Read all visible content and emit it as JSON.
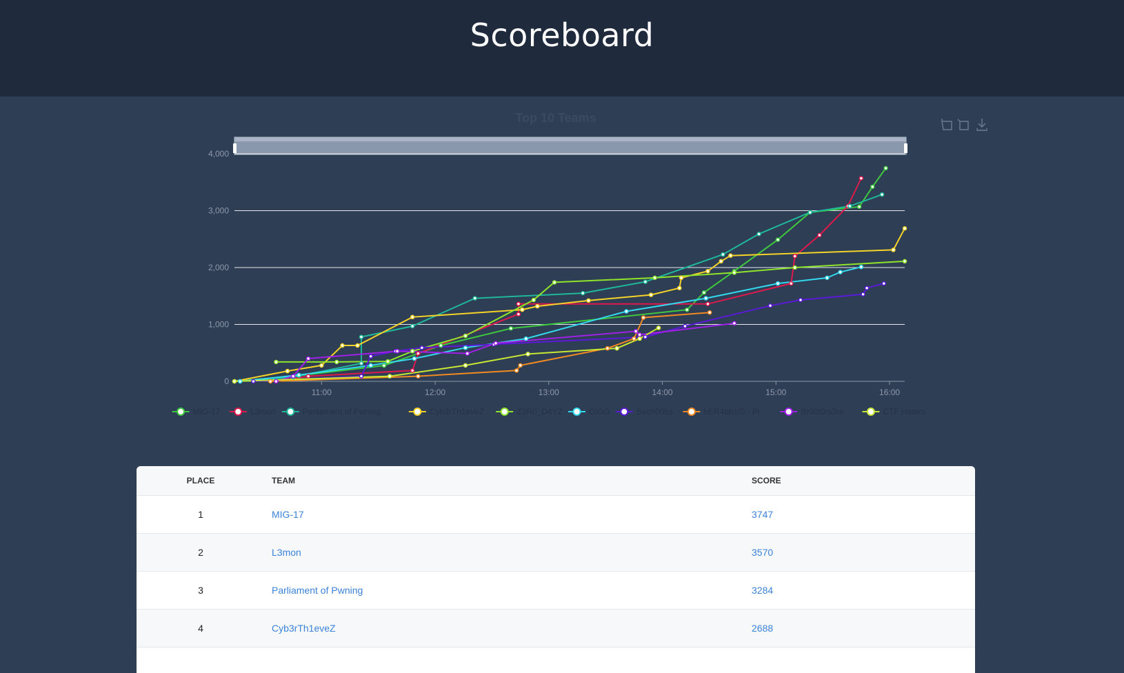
{
  "header": {
    "title": "Scoreboard"
  },
  "chart_data": {
    "type": "line",
    "title": "Top 10 Teams",
    "xlim": [
      614,
      968
    ],
    "xticks": [
      {
        "value": 660,
        "label": "11:00"
      },
      {
        "value": 720,
        "label": "12:00"
      },
      {
        "value": 780,
        "label": "13:00"
      },
      {
        "value": 840,
        "label": "14:00"
      },
      {
        "value": 900,
        "label": "15:00"
      },
      {
        "value": 960,
        "label": "16:00"
      }
    ],
    "ylim": [
      0,
      4000
    ],
    "yticks": [
      0,
      {
        "value": 1000,
        "label": "1,000"
      },
      {
        "value": 2000,
        "label": "2,000"
      },
      {
        "value": 3000,
        "label": "3,000"
      },
      {
        "value": 4000,
        "label": "4,000"
      }
    ],
    "grid": true,
    "legend": "bottom",
    "series": [
      {
        "name": "MIG-17",
        "color": "#3fc93f",
        "x": [
          614,
          648,
          693,
          723,
          760,
          853,
          862,
          878,
          901,
          918,
          944,
          951,
          958
        ],
        "values": [
          0,
          100,
          277,
          630,
          930,
          1258,
          1560,
          1937,
          2490,
          2970,
          3070,
          3420,
          3747
        ]
      },
      {
        "name": "L3mon",
        "color": "#e0194d",
        "x": [
          636,
          653,
          708,
          711,
          764,
          764,
          864,
          908,
          910,
          923,
          938,
          945
        ],
        "values": [
          0,
          90,
          190,
          490,
          1180,
          1360,
          1360,
          1720,
          2200,
          2570,
          3080,
          3570
        ]
      },
      {
        "name": "Parliament of Pwning",
        "color": "#1fb89a",
        "x": [
          617,
          645,
          681,
          681,
          708,
          741,
          798,
          831,
          872,
          891,
          918,
          939,
          956
        ],
        "values": [
          0,
          75,
          315,
          780,
          970,
          1460,
          1550,
          1750,
          2230,
          2590,
          2970,
          3080,
          3284
        ]
      },
      {
        "name": "Cyb3rTh1eveZ",
        "color": "#f5d327",
        "x": [
          614,
          642,
          660,
          671,
          679,
          708,
          766,
          774,
          801,
          834,
          849,
          850,
          864,
          871,
          876,
          962,
          968
        ],
        "values": [
          0,
          180,
          280,
          630,
          630,
          1130,
          1260,
          1320,
          1420,
          1520,
          1640,
          1820,
          1937,
          2110,
          2210,
          2310,
          2688
        ]
      },
      {
        "name": "Z3R0_D4YZ",
        "color": "#8ee52a",
        "x": [
          636,
          668,
          695,
          708,
          736,
          772,
          783,
          836,
          878,
          910,
          968
        ],
        "values": [
          340,
          340,
          350,
          530,
          800,
          1430,
          1740,
          1820,
          1910,
          2000,
          2110
        ]
      },
      {
        "name": "GiGG",
        "color": "#33d9ef",
        "x": [
          617,
          648,
          686,
          709,
          736,
          768,
          821,
          863,
          901,
          927,
          934,
          945
        ],
        "values": [
          0,
          110,
          280,
          400,
          590,
          750,
          1230,
          1460,
          1720,
          1820,
          1920,
          2010
        ]
      },
      {
        "name": "Sech00bs",
        "color": "#5b19d8",
        "x": [
          624,
          681,
          686,
          699,
          713,
          751,
          831,
          852,
          897,
          913,
          946,
          948,
          957
        ],
        "values": [
          0,
          90,
          440,
          530,
          590,
          650,
          780,
          970,
          1330,
          1430,
          1530,
          1640,
          1720
        ]
      },
      {
        "name": "bER4bb1t5 - Pi",
        "color": "#f28a22",
        "x": [
          633,
          711,
          763,
          765,
          811,
          825,
          830,
          865
        ],
        "values": [
          0,
          90,
          190,
          280,
          580,
          750,
          1120,
          1210
        ]
      },
      {
        "name": "Br00t0rs3rs",
        "color": "#a020e8",
        "x": [
          636,
          645,
          653,
          700,
          737,
          752,
          826,
          828,
          878
        ],
        "values": [
          0,
          90,
          400,
          530,
          490,
          670,
          880,
          820,
          1020
        ]
      },
      {
        "name": "CTF Haters",
        "color": "#c8e832",
        "x": [
          614,
          696,
          736,
          769,
          816,
          828,
          838
        ],
        "values": [
          0,
          90,
          280,
          480,
          580,
          750,
          940
        ]
      }
    ]
  },
  "table": {
    "columns": [
      "PLACE",
      "TEAM",
      "SCORE"
    ],
    "rows": [
      [
        1,
        "MIG-17",
        3747
      ],
      [
        2,
        "L3mon",
        3570
      ],
      [
        3,
        "Parliament of Pwning",
        3284
      ],
      [
        4,
        "Cyb3rTh1eveZ",
        2688
      ]
    ]
  }
}
